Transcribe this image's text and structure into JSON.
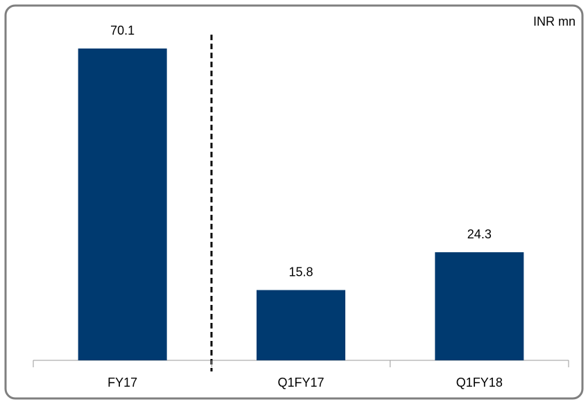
{
  "chart_data": {
    "type": "bar",
    "annotation": "INR mn",
    "categories": [
      "FY17",
      "Q1FY17",
      "Q1FY18"
    ],
    "values": [
      70.1,
      15.8,
      24.3
    ],
    "color": "#003a70"
  }
}
